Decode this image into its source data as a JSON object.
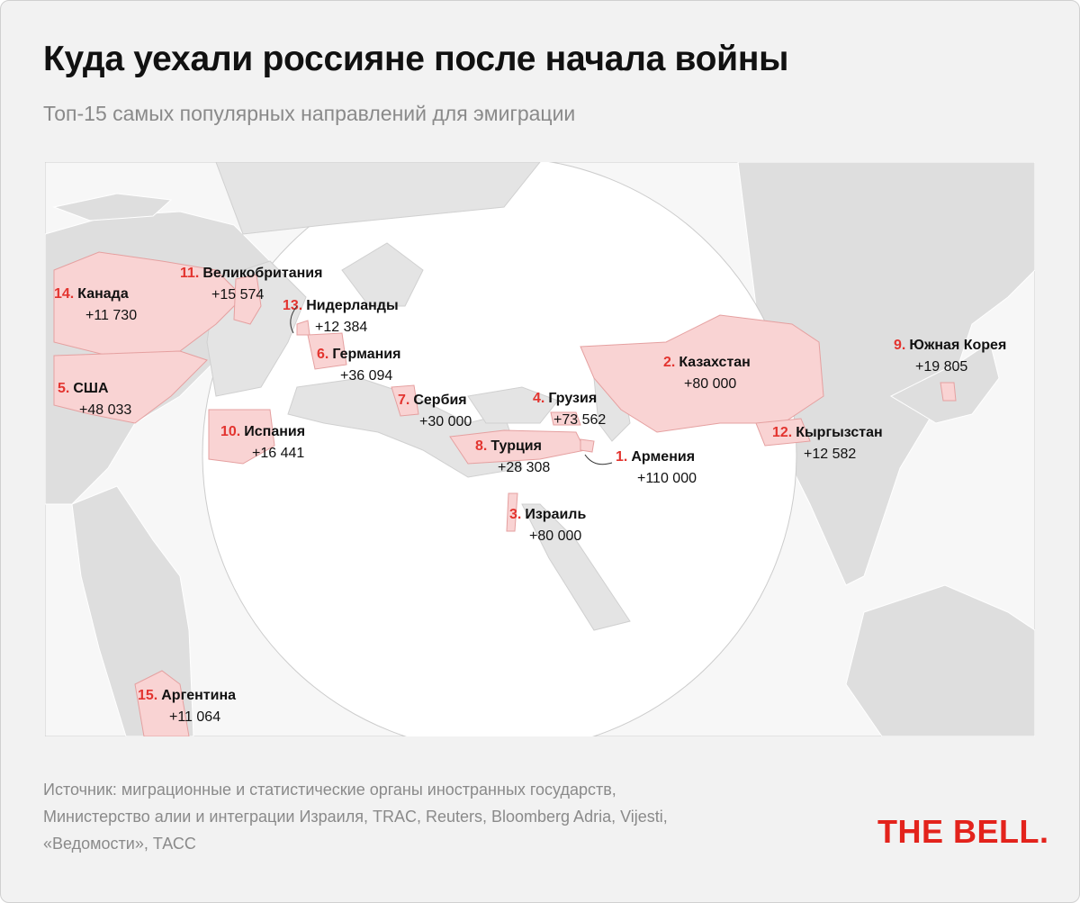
{
  "header": {
    "title": "Куда уехали россияне после начала войны",
    "subtitle": "Топ-15 самых популярных направлений для эмиграции"
  },
  "places": [
    {
      "rank": "1.",
      "name": "Армения",
      "value": "+110 000"
    },
    {
      "rank": "2.",
      "name": "Казахстан",
      "value": "+80 000"
    },
    {
      "rank": "3.",
      "name": "Израиль",
      "value": "+80 000"
    },
    {
      "rank": "4.",
      "name": "Грузия",
      "value": "+73 562"
    },
    {
      "rank": "5.",
      "name": "США",
      "value": "+48 033"
    },
    {
      "rank": "6.",
      "name": "Германия",
      "value": "+36 094"
    },
    {
      "rank": "7.",
      "name": "Сербия",
      "value": "+30 000"
    },
    {
      "rank": "8.",
      "name": "Турция",
      "value": "+28 308"
    },
    {
      "rank": "9.",
      "name": "Южная Корея",
      "value": "+19 805"
    },
    {
      "rank": "10.",
      "name": "Испания",
      "value": "+16 441"
    },
    {
      "rank": "11.",
      "name": "Великобритания",
      "value": "+15 574"
    },
    {
      "rank": "12.",
      "name": "Кыргызстан",
      "value": "+12 582"
    },
    {
      "rank": "13.",
      "name": "Нидерланды",
      "value": "+12 384"
    },
    {
      "rank": "14.",
      "name": "Канада",
      "value": "+11 730"
    },
    {
      "rank": "15.",
      "name": "Аргентина",
      "value": "+11 064"
    }
  ],
  "source": [
    "Источник: миграционные и статистические органы иностранных государств,",
    "Министерство алии и интеграции Израиля, TRAC, Reuters, Bloomberg Adria, Vijesti,",
    "«Ведомости», ТАСС"
  ],
  "logo": "THE BELL."
}
